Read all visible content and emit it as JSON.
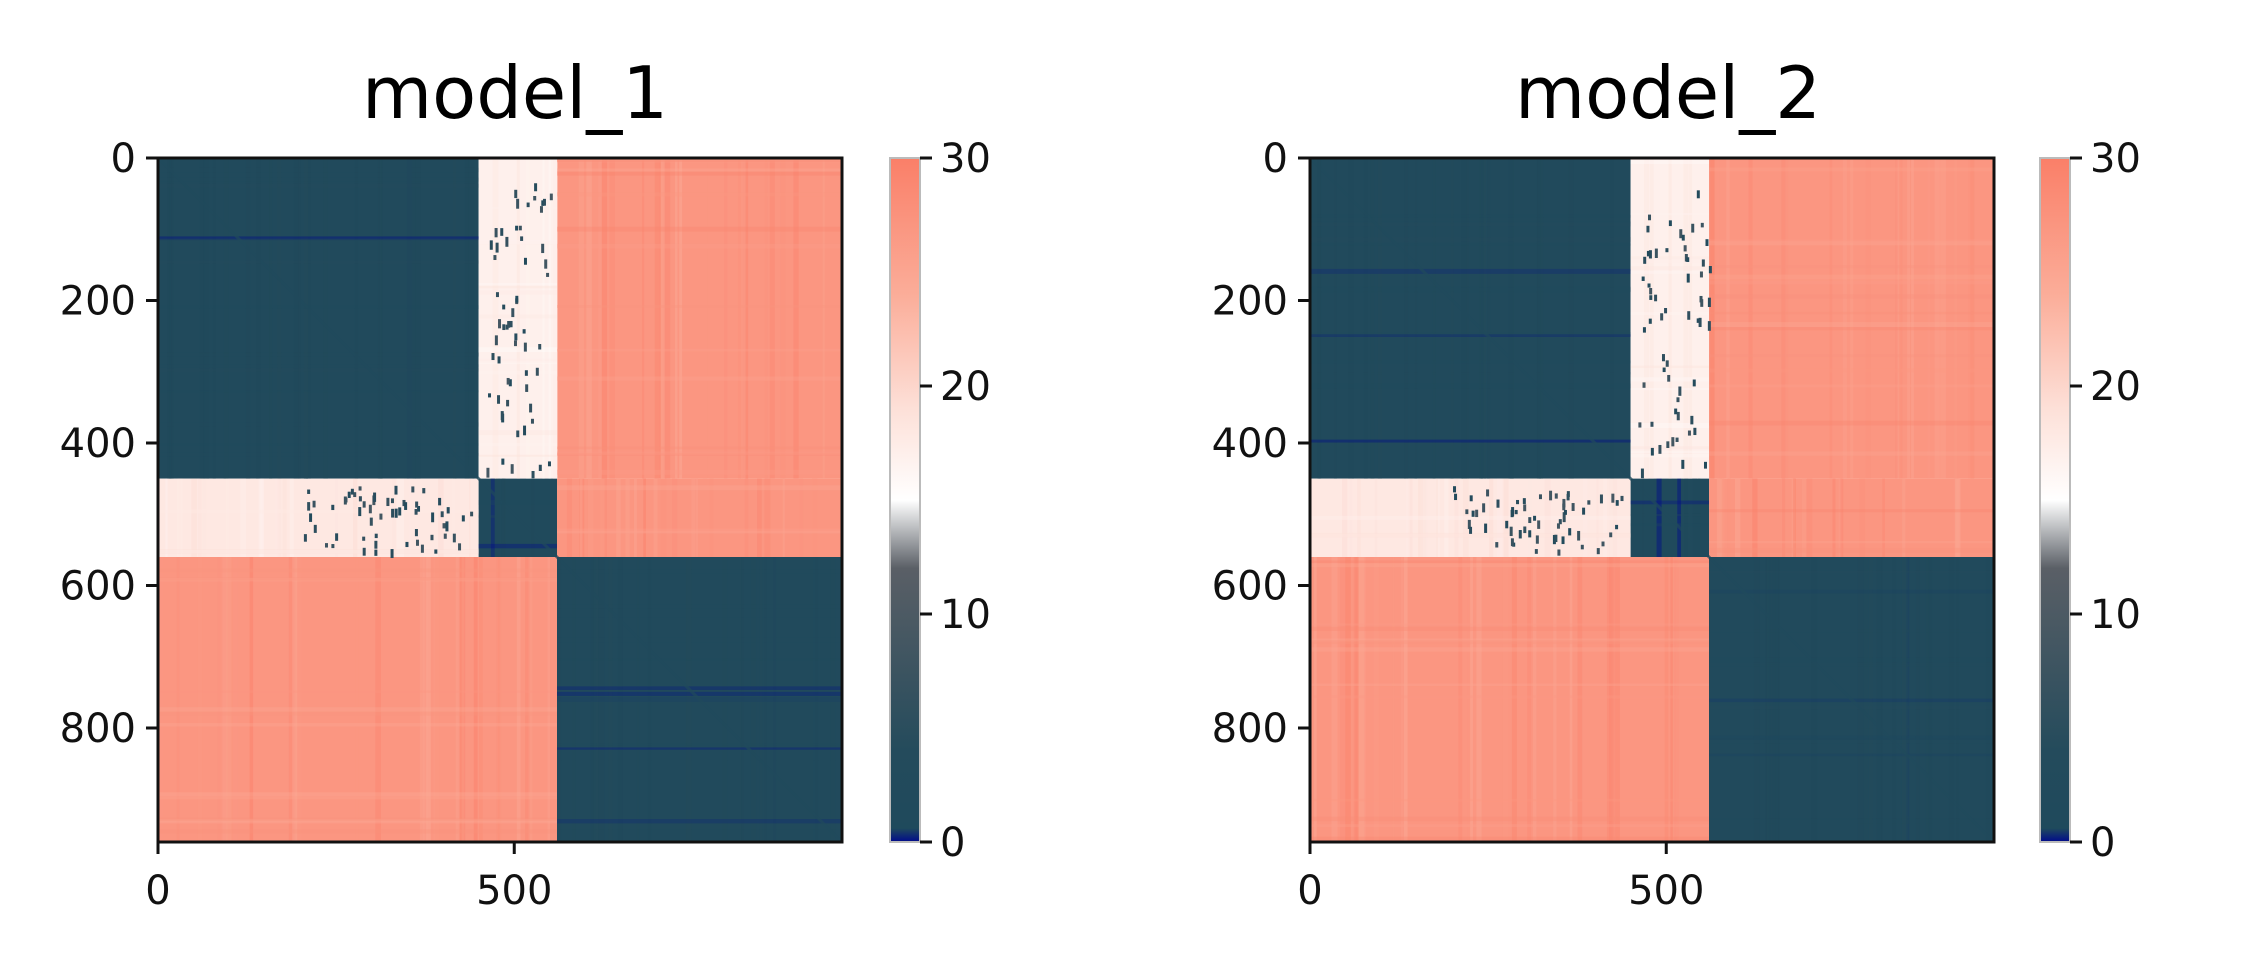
{
  "chart_data": [
    {
      "type": "heatmap",
      "title": "model_1",
      "xlabel": "",
      "ylabel": "",
      "n": 960,
      "xlim": [
        0,
        960
      ],
      "ylim": [
        960,
        0
      ],
      "x_ticks": [
        0,
        500
      ],
      "x_tick_labels": [
        "0",
        "500"
      ],
      "y_ticks": [
        0,
        200,
        400,
        600,
        800
      ],
      "y_tick_labels": [
        "0",
        "200",
        "400",
        "600",
        "800"
      ],
      "colorbar": {
        "range": [
          0,
          30
        ],
        "ticks": [
          0,
          10,
          20,
          30
        ],
        "tick_labels": [
          "0",
          "10",
          "20",
          "30"
        ]
      },
      "blocks": [
        {
          "rows": [
            0,
            450
          ],
          "cols": [
            0,
            450
          ],
          "value": 2
        },
        {
          "rows": [
            0,
            450
          ],
          "cols": [
            450,
            560
          ],
          "value": 17
        },
        {
          "rows": [
            0,
            450
          ],
          "cols": [
            560,
            960
          ],
          "value": 27
        },
        {
          "rows": [
            450,
            560
          ],
          "cols": [
            0,
            450
          ],
          "value": 18
        },
        {
          "rows": [
            450,
            560
          ],
          "cols": [
            450,
            560
          ],
          "value": 1
        },
        {
          "rows": [
            450,
            560
          ],
          "cols": [
            560,
            960
          ],
          "value": 27
        },
        {
          "rows": [
            560,
            960
          ],
          "cols": [
            0,
            560
          ],
          "value": 27
        },
        {
          "rows": [
            560,
            960
          ],
          "cols": [
            560,
            960
          ],
          "value": 2
        }
      ]
    },
    {
      "type": "heatmap",
      "title": "model_2",
      "xlabel": "",
      "ylabel": "",
      "n": 960,
      "xlim": [
        0,
        960
      ],
      "ylim": [
        960,
        0
      ],
      "x_ticks": [
        0,
        500
      ],
      "x_tick_labels": [
        "0",
        "500"
      ],
      "y_ticks": [
        0,
        200,
        400,
        600,
        800
      ],
      "y_tick_labels": [
        "0",
        "200",
        "400",
        "600",
        "800"
      ],
      "colorbar": {
        "range": [
          0,
          30
        ],
        "ticks": [
          0,
          10,
          20,
          30
        ],
        "tick_labels": [
          "0",
          "10",
          "20",
          "30"
        ]
      },
      "blocks": [
        {
          "rows": [
            0,
            450
          ],
          "cols": [
            0,
            450
          ],
          "value": 2
        },
        {
          "rows": [
            0,
            450
          ],
          "cols": [
            450,
            560
          ],
          "value": 17
        },
        {
          "rows": [
            0,
            450
          ],
          "cols": [
            560,
            960
          ],
          "value": 27
        },
        {
          "rows": [
            450,
            560
          ],
          "cols": [
            0,
            450
          ],
          "value": 18
        },
        {
          "rows": [
            450,
            560
          ],
          "cols": [
            450,
            560
          ],
          "value": 1
        },
        {
          "rows": [
            450,
            560
          ],
          "cols": [
            560,
            960
          ],
          "value": 27
        },
        {
          "rows": [
            560,
            960
          ],
          "cols": [
            0,
            560
          ],
          "value": 27
        },
        {
          "rows": [
            560,
            960
          ],
          "cols": [
            560,
            960
          ],
          "value": 2
        }
      ]
    }
  ],
  "colormap": {
    "stops": [
      {
        "value": 0,
        "color": "#000a8c"
      },
      {
        "value": 0.6,
        "color": "#1f4a5c"
      },
      {
        "value": 4,
        "color": "#244b5c"
      },
      {
        "value": 12,
        "color": "#5a5f66"
      },
      {
        "value": 15,
        "color": "#ffffff"
      },
      {
        "value": 19,
        "color": "#fde0d8"
      },
      {
        "value": 24,
        "color": "#fbad99"
      },
      {
        "value": 30,
        "color": "#fa7f68"
      }
    ]
  }
}
